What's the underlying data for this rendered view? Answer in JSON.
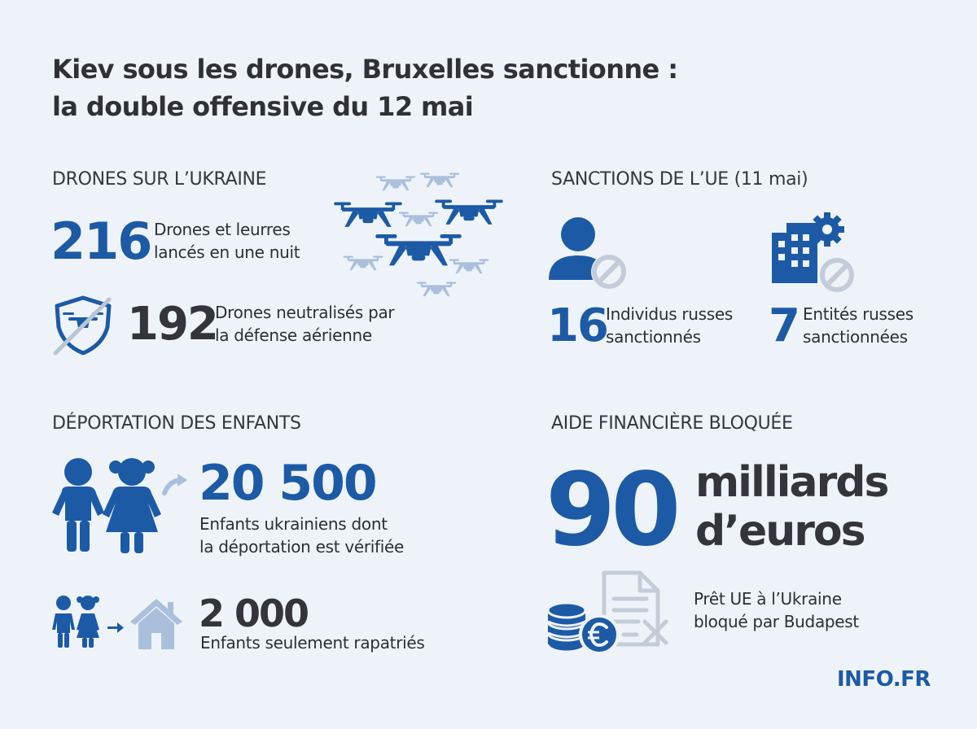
{
  "title": {
    "line1": "Kiev sous les drones, Bruxelles sanctionne :",
    "line2": "la double offensive du 12 mai"
  },
  "drones": {
    "heading": "DRONES SUR L’UKRAINE",
    "launched_value": "216",
    "launched_line1": "Drones et leurres",
    "launched_line2": "lancés en une nuit",
    "neutralized_value": "192",
    "neutralized_line1": "Drones neutralisés par",
    "neutralized_line2": "la défense aérienne",
    "icons": [
      "drone-swarm-icon",
      "shield-drone-icon"
    ]
  },
  "sanctions": {
    "heading": "SANCTIONS DE L’UE (11 mai)",
    "individuals_value": "16",
    "individuals_line1": "Individus russes",
    "individuals_line2": "sanctionnés",
    "entities_value": "7",
    "entities_line1": "Entités russes",
    "entities_line2": "sanctionnées",
    "icons": [
      "person-banned-icon",
      "building-banned-icon"
    ]
  },
  "children": {
    "heading": "DÉPORTATION DES ENFANTS",
    "deported_value": "20 500",
    "deported_line1": "Enfants ukrainiens dont",
    "deported_line2": "la déportation est vérifiée",
    "repatriated_value": "2 000",
    "repatriated_line1": "Enfants seulement rapatriés",
    "icons": [
      "children-arrow-icon",
      "children-home-icon"
    ]
  },
  "aid": {
    "heading": "AIDE FINANCIÈRE BLOQUÉE",
    "amount_value": "90",
    "amount_unit_line1": "milliards",
    "amount_unit_line2": "d’euros",
    "loan_line1": "Prêt UE à l’Ukraine",
    "loan_line2": "bloqué par Budapest",
    "icons": [
      "coins-euro-icon",
      "document-blocked-icon"
    ]
  },
  "brand": "INFO.FR",
  "colors": {
    "background": "#eef3f9",
    "accent_blue": "#1d5aa6",
    "light_blue": "#a9bfdc",
    "dark_text": "#33353a",
    "ban_gray": "#c3ccd8"
  }
}
